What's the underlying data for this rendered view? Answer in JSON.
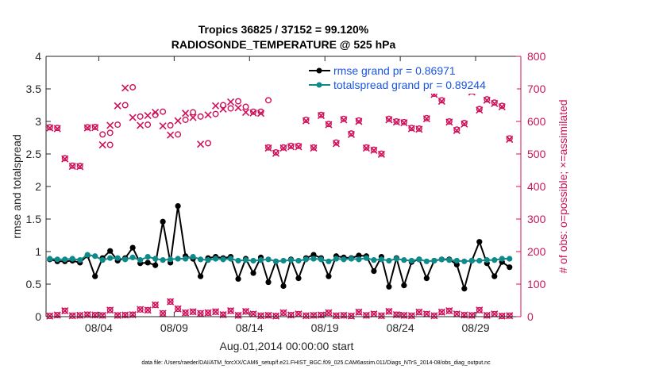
{
  "chart_data": {
    "type": "line",
    "title": "Tropics 36825 / 37152 = 99.120%",
    "subtitle": "RADIOSONDE_TEMPERATURE @ 525 hPa",
    "xlabel": "Aug.01,2014 00:00:00 start",
    "ylabel_left": "rmse and totalspread",
    "ylabel_right": "# of obs: o=possible; ×=assimilated",
    "xlim": [
      0.5,
      32
    ],
    "ylim_left": [
      0,
      4
    ],
    "ylim_right": [
      0,
      800
    ],
    "xtick_values": [
      4,
      9,
      14,
      19,
      24,
      29
    ],
    "xtick_labels": [
      "08/04",
      "08/09",
      "08/14",
      "08/19",
      "08/24",
      "08/29"
    ],
    "ytick_left": [
      "0",
      "0.5",
      "1",
      "1.5",
      "2",
      "2.5",
      "3",
      "3.5",
      "4"
    ],
    "ytick_right": [
      "0",
      "100",
      "200",
      "300",
      "400",
      "500",
      "600",
      "700",
      "800"
    ],
    "legend": [
      {
        "label": "rmse grand pr = 0.86971",
        "color": "#000000"
      },
      {
        "label": "totalspread grand pr = 0.89244",
        "color": "#0e8a8a"
      }
    ],
    "footnote": "data file: /Users/raeder/DAI/ATM_forcXX/CAM6_setup/f.e21.FHIST_BGC.f09_025.CAM6assim.011/Diags_NTrS_2014-08/obs_diag_output.nc",
    "colors": {
      "rmse": "#000000",
      "spread": "#0e8a8a",
      "obs": "#d0105a"
    },
    "series": [
      {
        "name": "rmse",
        "axis": "left",
        "x": [
          0.75,
          1.25,
          1.75,
          2.25,
          2.75,
          3.25,
          3.75,
          4.25,
          4.75,
          5.25,
          5.75,
          6.25,
          6.75,
          7.25,
          7.75,
          8.25,
          8.75,
          9.25,
          9.75,
          10.25,
          10.75,
          11.25,
          11.75,
          12.25,
          12.75,
          13.25,
          13.75,
          14.25,
          14.75,
          15.25,
          15.75,
          16.25,
          16.75,
          17.25,
          17.75,
          18.25,
          18.75,
          19.25,
          19.75,
          20.25,
          20.75,
          21.25,
          21.75,
          22.25,
          22.75,
          23.25,
          23.75,
          24.25,
          24.75,
          25.25,
          25.75,
          26.25,
          26.75,
          27.25,
          27.75,
          28.25,
          28.75,
          29.25,
          29.75,
          30.25,
          30.75,
          31.25
        ],
        "values": [
          0.88,
          0.85,
          0.85,
          0.86,
          0.83,
          0.94,
          0.62,
          0.9,
          1.01,
          0.86,
          0.9,
          1.06,
          0.82,
          0.83,
          0.79,
          1.46,
          0.83,
          1.7,
          0.93,
          0.89,
          0.62,
          0.9,
          0.92,
          0.9,
          0.92,
          0.58,
          0.89,
          0.67,
          0.91,
          0.53,
          0.85,
          0.47,
          0.88,
          0.59,
          0.9,
          0.95,
          0.9,
          0.62,
          0.93,
          0.91,
          0.9,
          0.94,
          0.93,
          0.7,
          0.92,
          0.46,
          0.9,
          0.48,
          0.84,
          0.88,
          0.59,
          0.86,
          0.88,
          0.88,
          0.8,
          0.43,
          0.86,
          1.15,
          0.82,
          0.62,
          0.84,
          0.76
        ]
      },
      {
        "name": "totalspread",
        "axis": "left",
        "x": [
          0.75,
          1.25,
          1.75,
          2.25,
          2.75,
          3.25,
          3.75,
          4.25,
          4.75,
          5.25,
          5.75,
          6.25,
          6.75,
          7.25,
          7.75,
          8.25,
          8.75,
          9.25,
          9.75,
          10.25,
          10.75,
          11.25,
          11.75,
          12.25,
          12.75,
          13.25,
          13.75,
          14.25,
          14.75,
          15.25,
          15.75,
          16.25,
          16.75,
          17.25,
          17.75,
          18.25,
          18.75,
          19.25,
          19.75,
          20.25,
          20.75,
          21.25,
          21.75,
          22.25,
          22.75,
          23.25,
          23.75,
          24.25,
          24.75,
          25.25,
          25.75,
          26.25,
          26.75,
          27.25,
          27.75,
          28.25,
          28.75,
          29.25,
          29.75,
          30.25,
          30.75,
          31.25
        ],
        "values": [
          0.89,
          0.88,
          0.88,
          0.89,
          0.87,
          0.95,
          0.93,
          0.87,
          0.9,
          0.9,
          0.88,
          0.91,
          0.87,
          0.92,
          0.89,
          0.87,
          0.88,
          0.89,
          0.89,
          0.92,
          0.88,
          0.87,
          0.89,
          0.88,
          0.89,
          0.86,
          0.87,
          0.86,
          0.87,
          0.88,
          0.85,
          0.86,
          0.87,
          0.86,
          0.88,
          0.89,
          0.88,
          0.85,
          0.89,
          0.88,
          0.89,
          0.88,
          0.9,
          0.87,
          0.88,
          0.86,
          0.89,
          0.87,
          0.86,
          0.88,
          0.85,
          0.86,
          0.88,
          0.87,
          0.86,
          0.85,
          0.86,
          0.86,
          0.87,
          0.87,
          0.89,
          0.89
        ]
      },
      {
        "name": "obs_possible",
        "axis": "right",
        "x": [
          0.75,
          1.25,
          1.75,
          2.25,
          2.75,
          3.25,
          3.75,
          4.25,
          4.75,
          5.25,
          5.75,
          6.25,
          6.75,
          7.25,
          7.75,
          8.25,
          8.75,
          9.25,
          9.75,
          10.25,
          10.75,
          11.25,
          11.75,
          12.25,
          12.75,
          13.25,
          13.75,
          14.25,
          14.75,
          15.25,
          15.75,
          16.25,
          16.75,
          17.25,
          17.75,
          18.25,
          18.75,
          19.25,
          19.75,
          20.25,
          20.75,
          21.25,
          21.75,
          22.25,
          22.75,
          23.25,
          23.75,
          24.25,
          24.75,
          25.25,
          25.75,
          26.25,
          26.75,
          27.25,
          27.75,
          28.25,
          28.75,
          29.25,
          29.75,
          30.25,
          30.75,
          31.25
        ],
        "values": [
          582,
          580,
          487,
          464,
          463,
          582,
          583,
          560,
          528,
          590,
          650,
          705,
          615,
          590,
          620,
          630,
          588,
          560,
          605,
          628,
          615,
          533,
          623,
          650,
          640,
          662,
          645,
          630,
          630,
          520,
          505,
          520,
          525,
          525,
          605,
          520,
          620,
          592,
          535,
          608,
          563,
          603,
          520,
          513,
          501,
          608,
          600,
          598,
          580,
          578,
          610,
          685,
          665,
          600,
          575,
          595,
          693,
          638,
          668,
          658,
          648,
          548
        ],
        "highlight": [
          {
            "x": 4.75,
            "value": 565
          },
          {
            "x": 15.25,
            "value": 665
          }
        ]
      },
      {
        "name": "obs_assimilated",
        "axis": "right",
        "x": [
          0.75,
          1.25,
          1.75,
          2.25,
          2.75,
          3.25,
          3.75,
          4.25,
          4.75,
          5.25,
          5.75,
          6.25,
          6.75,
          7.25,
          7.75,
          8.25,
          8.75,
          9.25,
          9.75,
          10.25,
          10.75,
          11.25,
          11.75,
          12.25,
          12.75,
          13.25,
          13.75,
          14.25,
          14.75,
          15.25,
          15.75,
          16.25,
          16.75,
          17.25,
          17.75,
          18.25,
          18.75,
          19.25,
          19.75,
          20.25,
          20.75,
          21.25,
          21.75,
          22.25,
          22.75,
          23.25,
          23.75,
          24.25,
          24.75,
          25.25,
          25.75,
          26.25,
          26.75,
          27.25,
          27.75,
          28.25,
          28.75,
          29.25,
          29.75,
          30.25,
          30.75,
          31.25
        ],
        "values": [
          580,
          578,
          485,
          462,
          461,
          580,
          581,
          528,
          588,
          648,
          703,
          612,
          588,
          618,
          628,
          586,
          558,
          602,
          625,
          612,
          530,
          620,
          648,
          638,
          660,
          642,
          628,
          626,
          625,
          518,
          502,
          518,
          522,
          522,
          602,
          518,
          618,
          590,
          532,
          605,
          560,
          600,
          518,
          511,
          499,
          605,
          598,
          596,
          578,
          576,
          608,
          683,
          662,
          598,
          572,
          592,
          690,
          635,
          665,
          655,
          645,
          545
        ]
      },
      {
        "name": "obs_low",
        "axis": "right",
        "x": [
          0.75,
          1.25,
          1.75,
          2.25,
          2.75,
          3.25,
          3.75,
          4.25,
          4.75,
          5.25,
          5.75,
          6.25,
          6.75,
          7.25,
          7.75,
          8.25,
          8.75,
          9.25,
          9.75,
          10.25,
          10.75,
          11.25,
          11.75,
          12.25,
          12.75,
          13.25,
          13.75,
          14.25,
          14.75,
          15.25,
          15.75,
          16.25,
          16.75,
          17.25,
          17.75,
          18.25,
          18.75,
          19.25,
          19.75,
          20.25,
          20.75,
          21.25,
          21.75,
          22.25,
          22.75,
          23.25,
          23.75,
          24.25,
          24.75,
          25.25,
          25.75,
          26.25,
          26.75,
          27.25,
          27.75,
          28.25,
          28.75,
          29.25,
          29.75,
          30.25,
          30.75,
          31.25
        ],
        "values": [
          2,
          5,
          18,
          3,
          4,
          6,
          5,
          4,
          20,
          4,
          5,
          6,
          22,
          20,
          36,
          10,
          46,
          24,
          12,
          15,
          10,
          12,
          15,
          6,
          18,
          4,
          16,
          8,
          3,
          4,
          2,
          12,
          5,
          8,
          3,
          4,
          5,
          12,
          3,
          4,
          2,
          14,
          4,
          8,
          3,
          16,
          6,
          4,
          3,
          14,
          8,
          3,
          14,
          18,
          8,
          5,
          4,
          20,
          4,
          8,
          2,
          3
        ]
      }
    ]
  }
}
